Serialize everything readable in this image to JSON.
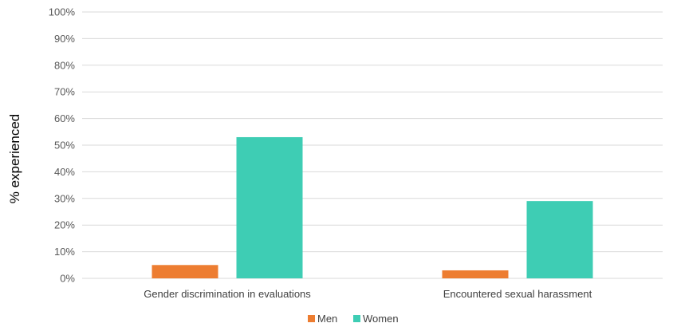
{
  "chart_data": {
    "type": "bar",
    "title": "",
    "xlabel": "",
    "ylabel": "% experienced",
    "ylim": [
      0,
      100
    ],
    "yticks": [
      "0%",
      "10%",
      "20%",
      "30%",
      "40%",
      "50%",
      "60%",
      "70%",
      "80%",
      "90%",
      "100%"
    ],
    "categories": [
      "Gender discrimination in evaluations",
      "Encountered sexual harassment"
    ],
    "series": [
      {
        "name": "Men",
        "color": "#ed7d31",
        "values": [
          5,
          3
        ]
      },
      {
        "name": "Women",
        "color": "#3ecdb4",
        "values": [
          53,
          29
        ]
      }
    ],
    "grid": true,
    "legend": "bottom"
  }
}
